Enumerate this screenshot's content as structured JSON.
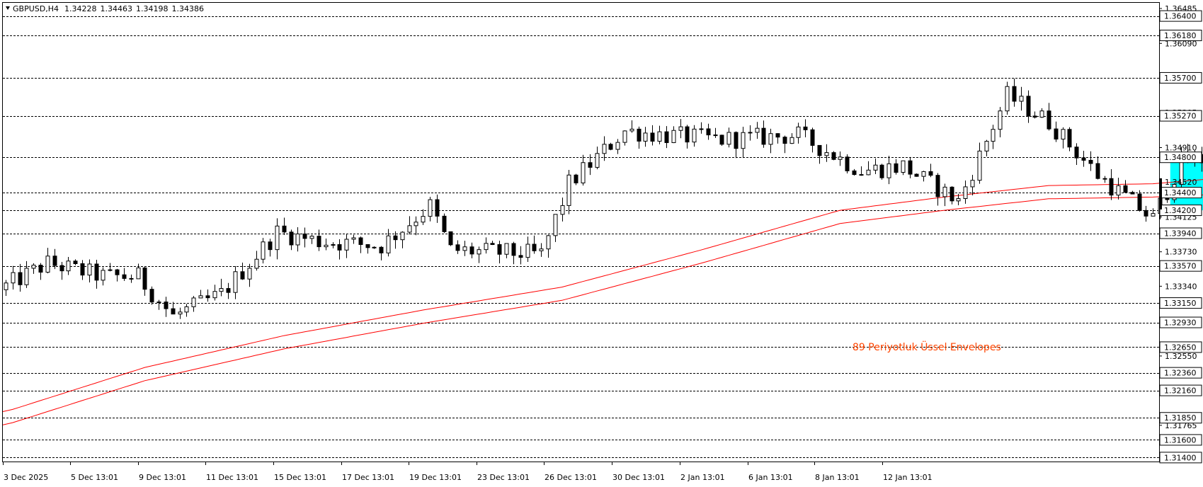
{
  "header": {
    "symbol_timeframe": "GBPUSD,H4",
    "open": "1.34228",
    "high": "1.34463",
    "low": "1.34198",
    "close": "1.34386"
  },
  "annotation": {
    "envelope_label": "89  Periyotluk Üssel Envelopes"
  },
  "colors": {
    "bull_body": "#ffffff",
    "bear_body": "#000000",
    "candle_outline": "#000000",
    "envelope": "#ff0000",
    "zone_fill": "#00ffff",
    "level_line": "#000000",
    "annotation_text": "#ff4500",
    "axis_text": "#000000"
  },
  "chart_data": {
    "type": "candlestick",
    "y_range": [
      1.31355,
      1.36485
    ],
    "axis_scale_labels": [
      "1.36485",
      "1.36090",
      "1.35695",
      "1.35305",
      "1.34910",
      "1.34520",
      "1.34125",
      "1.33730",
      "1.33340",
      "1.32945",
      "1.32550",
      "1.32155",
      "1.31765"
    ],
    "x_tick_labels": [
      "3 Dec 2025",
      "5 Dec 13:01",
      "9 Dec 13:01",
      "11 Dec 13:01",
      "15 Dec 13:01",
      "17 Dec 13:01",
      "19 Dec 13:01",
      "23 Dec 13:01",
      "26 Dec 13:01",
      "30 Dec 13:01",
      "2 Jan 13:01",
      "6 Jan 13:01",
      "8 Jan 13:01",
      "12 Jan 13:01"
    ],
    "levels": [
      "1.36400",
      "1.36180",
      "1.35700",
      "1.35270",
      "1.34800",
      "1.34400",
      "1.34200",
      "1.33940",
      "1.33570",
      "1.33150",
      "1.32930",
      "1.32650",
      "1.32360",
      "1.32160",
      "1.31850",
      "1.31600",
      "1.31400"
    ],
    "zone": {
      "top": 1.348,
      "bottom": 1.342,
      "start_bar": 168,
      "end_bar": 186
    },
    "last_price": 1.34386,
    "trend_anchors": [
      [
        0,
        1.333
      ],
      [
        7,
        1.336
      ],
      [
        15,
        1.3345
      ],
      [
        20,
        1.3345
      ],
      [
        25,
        1.33
      ],
      [
        32,
        1.3325
      ],
      [
        40,
        1.3395
      ],
      [
        46,
        1.3385
      ],
      [
        55,
        1.338
      ],
      [
        62,
        1.3425
      ],
      [
        65,
        1.3375
      ],
      [
        78,
        1.337
      ],
      [
        82,
        1.345
      ],
      [
        90,
        1.351
      ],
      [
        96,
        1.3505
      ],
      [
        104,
        1.35
      ],
      [
        115,
        1.3505
      ],
      [
        124,
        1.3465
      ],
      [
        130,
        1.347
      ],
      [
        138,
        1.343
      ],
      [
        145,
        1.355
      ],
      [
        151,
        1.352
      ],
      [
        158,
        1.346
      ],
      [
        166,
        1.341
      ],
      [
        170,
        1.3475
      ],
      [
        180,
        1.3485
      ],
      [
        184,
        1.342
      ],
      [
        186,
        1.3439
      ]
    ],
    "envelope": {
      "period": 89,
      "upper": [
        [
          0,
          1.3192
        ],
        [
          20,
          1.3242
        ],
        [
          40,
          1.3278
        ],
        [
          60,
          1.3307
        ],
        [
          80,
          1.3333
        ],
        [
          100,
          1.3375
        ],
        [
          120,
          1.342
        ],
        [
          135,
          1.3435
        ],
        [
          150,
          1.3448
        ],
        [
          165,
          1.345
        ],
        [
          180,
          1.346
        ],
        [
          186,
          1.3455
        ]
      ],
      "lower": [
        [
          0,
          1.3177
        ],
        [
          20,
          1.3227
        ],
        [
          40,
          1.3263
        ],
        [
          60,
          1.3292
        ],
        [
          80,
          1.3318
        ],
        [
          100,
          1.336
        ],
        [
          120,
          1.3405
        ],
        [
          135,
          1.342
        ],
        [
          150,
          1.3433
        ],
        [
          165,
          1.3435
        ],
        [
          180,
          1.344
        ],
        [
          186,
          1.344
        ]
      ]
    }
  }
}
